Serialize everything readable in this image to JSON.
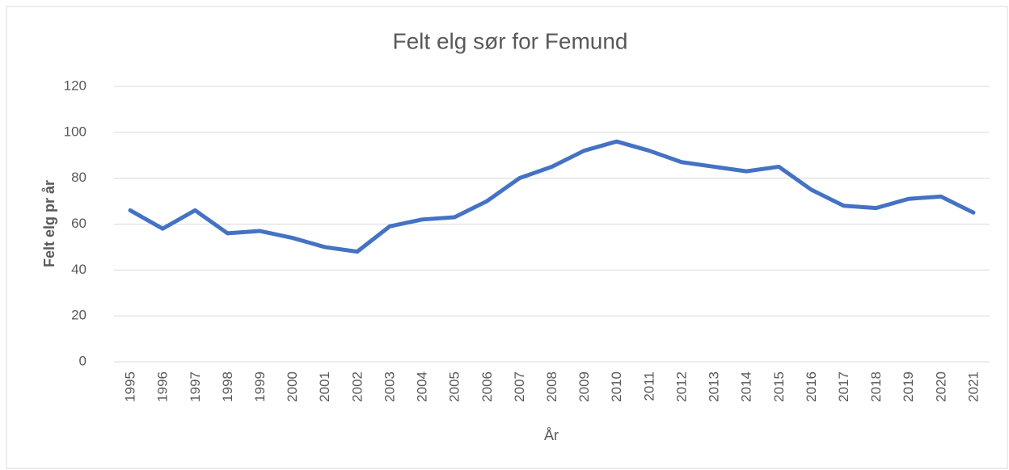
{
  "chart_data": {
    "type": "line",
    "title": "Felt elg sør for Femund",
    "y_label": "Felt elg pr år",
    "x_label": "År",
    "categories": [
      "1995",
      "1996",
      "1997",
      "1998",
      "1999",
      "2000",
      "2001",
      "2002",
      "2003",
      "2004",
      "2005",
      "2006",
      "2007",
      "2008",
      "2009",
      "2010",
      "2011",
      "2012",
      "2013",
      "2014",
      "2015",
      "2016",
      "2017",
      "2018",
      "2019",
      "2020",
      "2021"
    ],
    "series": [
      {
        "name": "Felt elg",
        "color": "#4472c4",
        "values": [
          66,
          58,
          66,
          56,
          57,
          54,
          50,
          48,
          59,
          62,
          63,
          70,
          80,
          85,
          92,
          96,
          92,
          87,
          85,
          83,
          85,
          75,
          68,
          67,
          71,
          72,
          65
        ]
      }
    ],
    "ylim": [
      0,
      120
    ],
    "yticks": [
      0,
      20,
      40,
      60,
      80,
      100,
      120
    ],
    "grid": true
  }
}
